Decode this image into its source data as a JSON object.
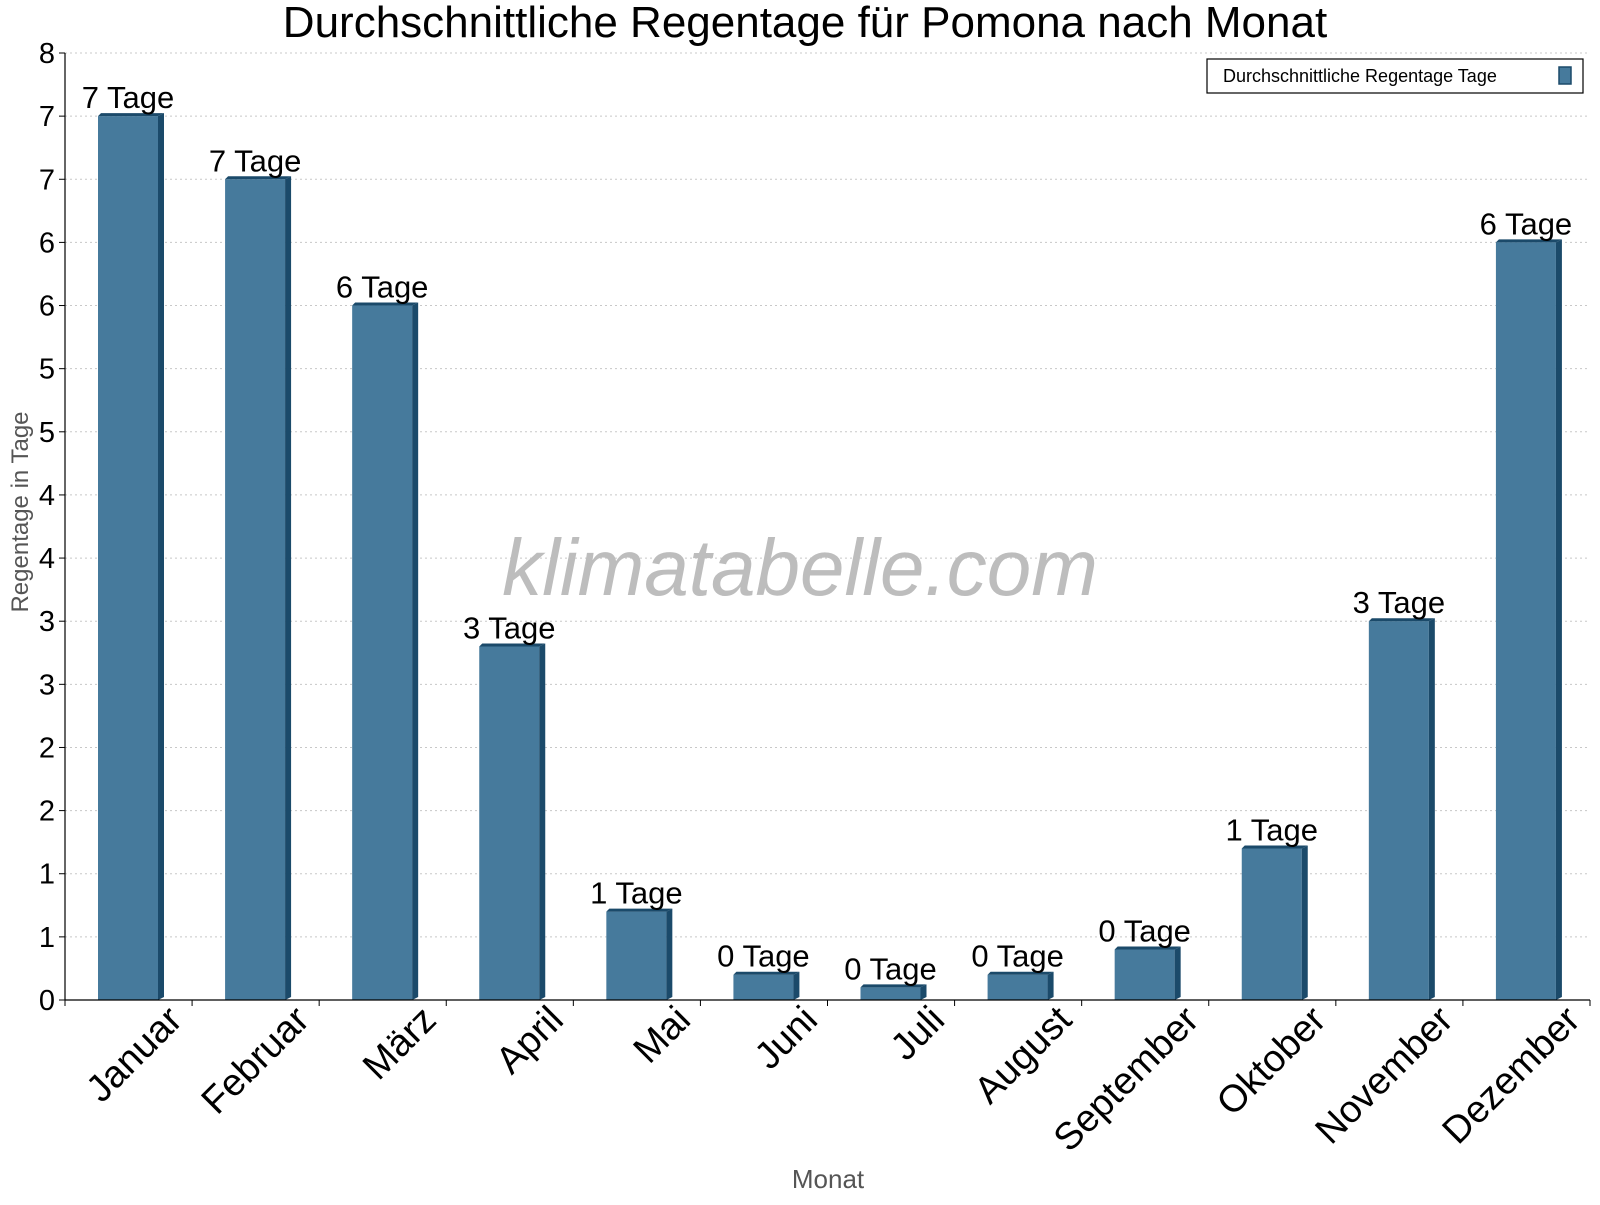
{
  "chart_data": {
    "type": "bar",
    "title": "Durchschnittliche Regentage für Pomona nach Monat",
    "xlabel": "Monat",
    "ylabel": "Regentage in Tage",
    "categories": [
      "Januar",
      "Februar",
      "März",
      "April",
      "Mai",
      "Juni",
      "Juli",
      "August",
      "September",
      "Oktober",
      "November",
      "Dezember"
    ],
    "series": [
      {
        "name": "Durchschnittliche Regentage Tage",
        "values": [
          7.0,
          6.5,
          5.5,
          2.8,
          0.7,
          0.2,
          0.1,
          0.2,
          0.4,
          1.2,
          3.0,
          6.0
        ],
        "data_labels": [
          "7 Tage",
          "7 Tage",
          "6 Tage",
          "3 Tage",
          "1 Tage",
          "0 Tage",
          "0 Tage",
          "0 Tage",
          "0 Tage",
          "1 Tage",
          "3 Tage",
          "6 Tage"
        ]
      }
    ],
    "ylim": [
      0,
      7.5
    ],
    "y_ticks": [
      0,
      0.5,
      1,
      1.5,
      2,
      2.5,
      3,
      3.5,
      4,
      4.5,
      5,
      5.5,
      6,
      6.5,
      7,
      7.5
    ],
    "y_tick_labels": [
      "0",
      "1",
      "1",
      "2",
      "2",
      "3",
      "3",
      "4",
      "4",
      "5",
      "5",
      "6",
      "6",
      "7",
      "7",
      "8"
    ],
    "grid": true,
    "legend_position": "top-right",
    "watermark": "klimatabelle.com",
    "colors": {
      "bar": "#467a9c",
      "bar_shade": "#1b4a6a",
      "grid": "#c8c8c8",
      "axis_title": "#555555"
    }
  }
}
